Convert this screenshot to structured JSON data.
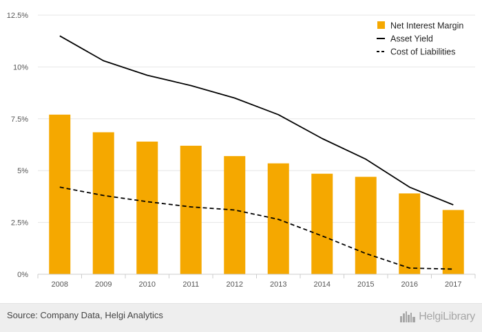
{
  "chart_data": {
    "type": "bar",
    "categories": [
      "2008",
      "2009",
      "2010",
      "2011",
      "2012",
      "2013",
      "2014",
      "2015",
      "2016",
      "2017"
    ],
    "series": [
      {
        "name": "Net Interest Margin",
        "kind": "bar",
        "color": "#f5a800",
        "values": [
          7.7,
          6.85,
          6.4,
          6.2,
          5.7,
          5.35,
          4.85,
          4.7,
          3.9,
          3.1
        ]
      },
      {
        "name": "Asset Yield",
        "kind": "line",
        "style": "solid",
        "color": "#000000",
        "values": [
          11.5,
          10.3,
          9.6,
          9.1,
          8.5,
          7.7,
          6.55,
          5.55,
          4.2,
          3.35
        ]
      },
      {
        "name": "Cost of Liabilities",
        "kind": "line",
        "style": "dashed",
        "color": "#000000",
        "values": [
          4.2,
          3.8,
          3.5,
          3.25,
          3.1,
          2.65,
          1.85,
          1.0,
          0.3,
          0.25
        ]
      }
    ],
    "ylim": [
      0,
      12.5
    ],
    "yticks": [
      0,
      2.5,
      5,
      7.5,
      10,
      12.5
    ],
    "ytick_labels": [
      "0%",
      "2.5%",
      "5%",
      "7.5%",
      "10%",
      "12.5%"
    ],
    "grid": true,
    "legend_position": "top-right",
    "xlabel": "",
    "ylabel": "",
    "title": ""
  },
  "footer": {
    "source": "Source: Company Data, Helgi Analytics",
    "brand": "HelgiLibrary",
    "brand_icon": "city-skyline-icon"
  }
}
